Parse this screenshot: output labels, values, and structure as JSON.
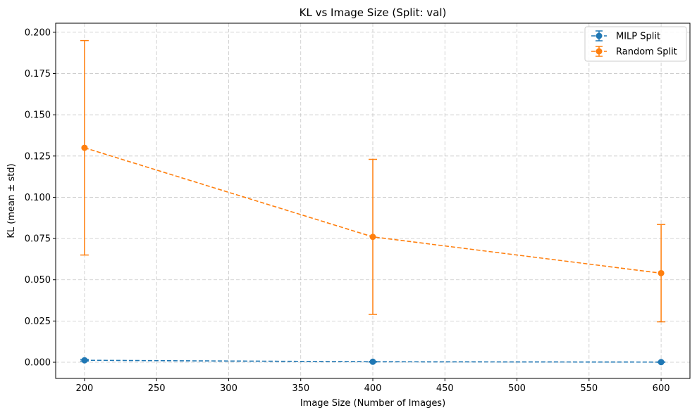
{
  "chart_data": {
    "type": "line",
    "title": "KL vs Image Size (Split: val)",
    "xlabel": "Image Size (Number of Images)",
    "ylabel": "KL (mean ± std)",
    "xlim": [
      180,
      620
    ],
    "ylim": [
      -0.0098,
      0.2055
    ],
    "xticks": [
      200,
      250,
      300,
      350,
      400,
      450,
      500,
      550,
      600
    ],
    "yticks": [
      0.0,
      0.025,
      0.05,
      0.075,
      0.1,
      0.125,
      0.15,
      0.175,
      0.2
    ],
    "ytick_labels": [
      "0.000",
      "0.025",
      "0.050",
      "0.075",
      "0.100",
      "0.125",
      "0.150",
      "0.175",
      "0.200"
    ],
    "grid": true,
    "legend_position": "top-right",
    "line_style": "dashed",
    "error_bars": true,
    "series": [
      {
        "name": "MILP Split",
        "color": "#1f77b4",
        "x": [
          200,
          400,
          600
        ],
        "y": [
          0.0012,
          0.0003,
          0.0001
        ],
        "std": [
          0.0005,
          0.0002,
          0.0001
        ]
      },
      {
        "name": "Random Split",
        "color": "#ff7f0e",
        "x": [
          200,
          400,
          600
        ],
        "y": [
          0.13,
          0.076,
          0.054
        ],
        "std": [
          0.065,
          0.047,
          0.0295
        ]
      }
    ]
  }
}
